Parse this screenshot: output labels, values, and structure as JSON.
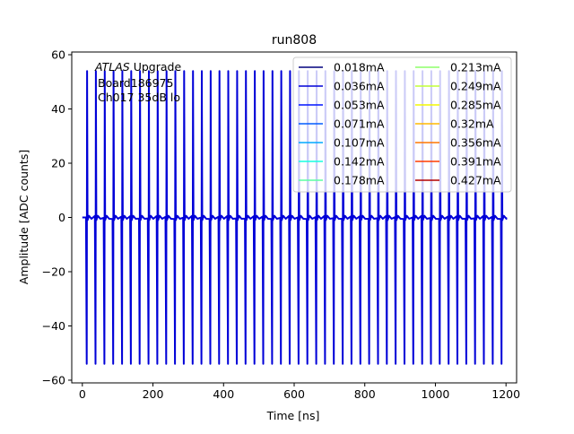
{
  "chart_data": {
    "type": "line",
    "title": "run808",
    "xlabel": "Time [ns]",
    "ylabel": "Amplitude [ADC counts]",
    "xlim": [
      -30,
      1230
    ],
    "ylim": [
      -61,
      61
    ],
    "xticks": [
      0,
      200,
      400,
      600,
      800,
      1000,
      1200
    ],
    "yticks": [
      -60,
      -40,
      -20,
      0,
      20,
      40,
      60
    ],
    "grid": false,
    "legend_position": "upper-right",
    "legend_columns": 2,
    "annotation": {
      "atlas_italic": "ATLAS",
      "atlas_rest": " Upgrade",
      "line2": "Board186975",
      "line3": "Ch017 35dB lo"
    },
    "pulse_train": {
      "x_start": 0,
      "x_end": 1200,
      "first_pulse_x": 13,
      "period_ns": 25,
      "num_pulses": 48,
      "baseline": 0,
      "peak_amplitude": 54,
      "undershoot_amplitude": -54
    },
    "series": [
      {
        "name": "0.018mA",
        "color": "#00007f"
      },
      {
        "name": "0.036mA",
        "color": "#0000d8"
      },
      {
        "name": "0.053mA",
        "color": "#0014ff"
      },
      {
        "name": "0.071mA",
        "color": "#005cff"
      },
      {
        "name": "0.107mA",
        "color": "#00a8ff"
      },
      {
        "name": "0.142mA",
        "color": "#16ffe1"
      },
      {
        "name": "0.178mA",
        "color": "#5bffa3"
      },
      {
        "name": "0.213mA",
        "color": "#8dff6a"
      },
      {
        "name": "0.249mA",
        "color": "#c1ff36"
      },
      {
        "name": "0.285mA",
        "color": "#f4f802"
      },
      {
        "name": "0.32mA",
        "color": "#ffb800"
      },
      {
        "name": "0.356mA",
        "color": "#ff7700"
      },
      {
        "name": "0.391mA",
        "color": "#ff3b00"
      },
      {
        "name": "0.427mA",
        "color": "#b20000"
      }
    ],
    "plot_color": "#0000d8"
  }
}
